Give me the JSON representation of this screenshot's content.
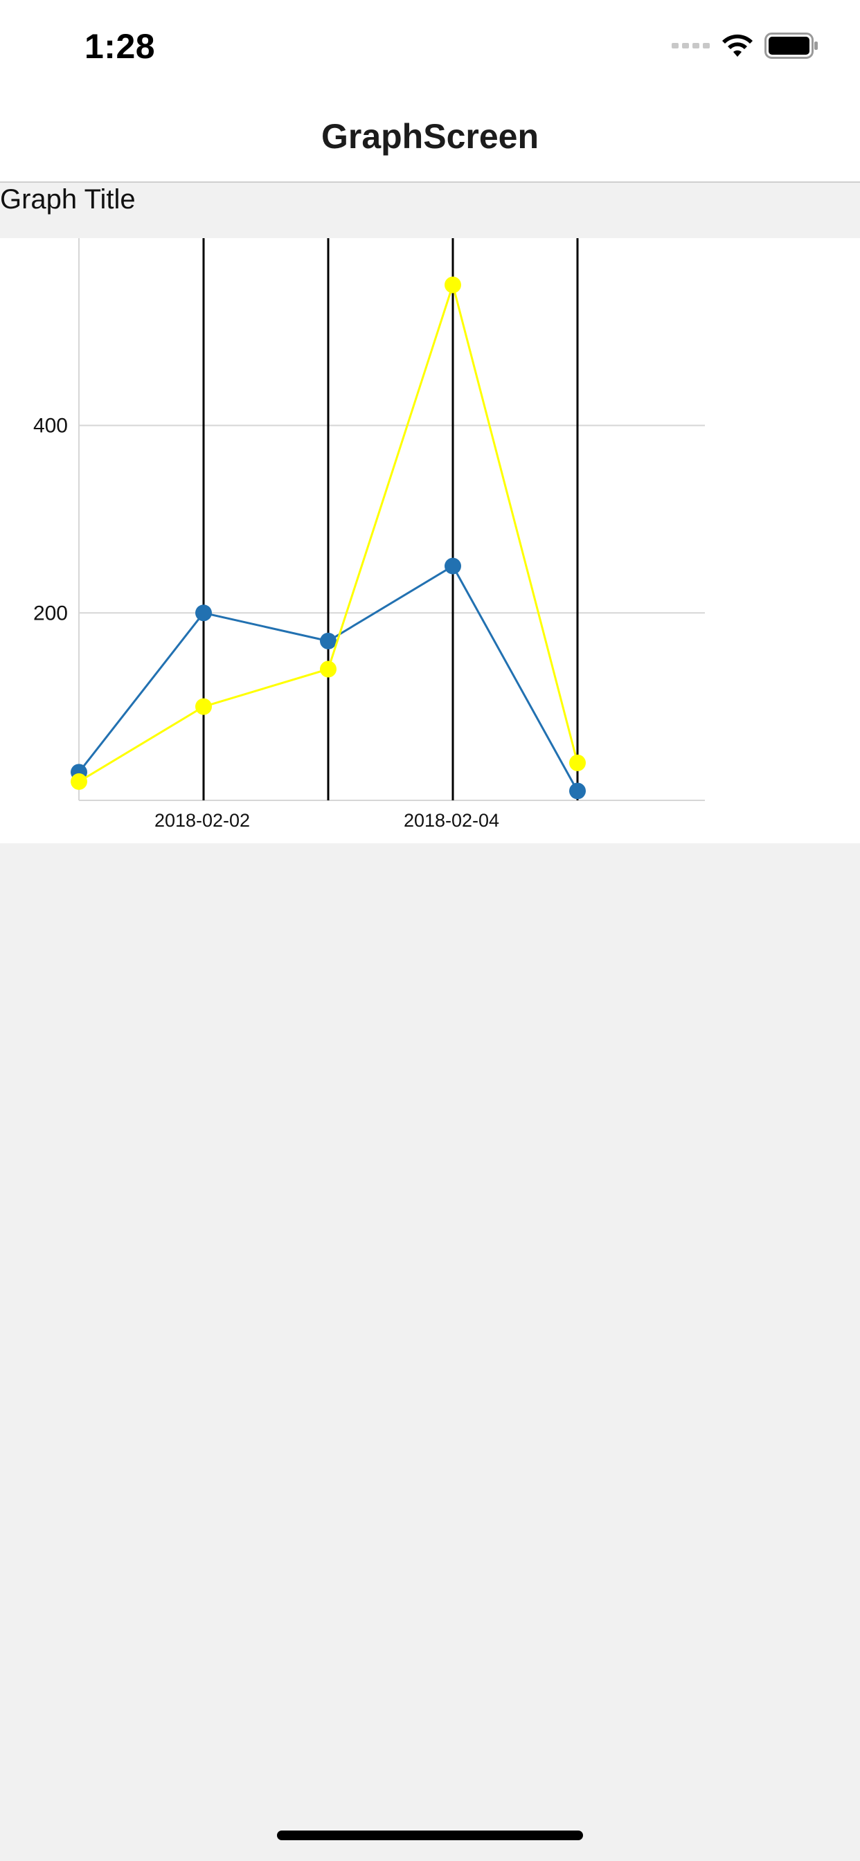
{
  "status_bar": {
    "time": "1:28",
    "icons": [
      "signal-dots-icon",
      "wifi-icon",
      "battery-icon"
    ]
  },
  "nav": {
    "title": "GraphScreen"
  },
  "graph": {
    "title": "Graph Title"
  },
  "colors": {
    "series_blue": "#2271b1",
    "series_yellow": "#ffff00",
    "gridline": "#d6d6d6",
    "date_rule": "#000000"
  },
  "chart_data": {
    "type": "line",
    "x": [
      "2018-02-01",
      "2018-02-02",
      "2018-02-03",
      "2018-02-04",
      "2018-02-05"
    ],
    "x_tick_labels": [
      "2018-02-02",
      "2018-02-04"
    ],
    "y_tick_labels": [
      "200",
      "400"
    ],
    "ylim": [
      0,
      600
    ],
    "grid": "horizontal",
    "series": [
      {
        "values": [
          30,
          200,
          170,
          250,
          10
        ],
        "color": "#2271b1"
      },
      {
        "values": [
          20,
          100,
          140,
          550,
          40
        ],
        "color": "#ffff00"
      }
    ]
  }
}
